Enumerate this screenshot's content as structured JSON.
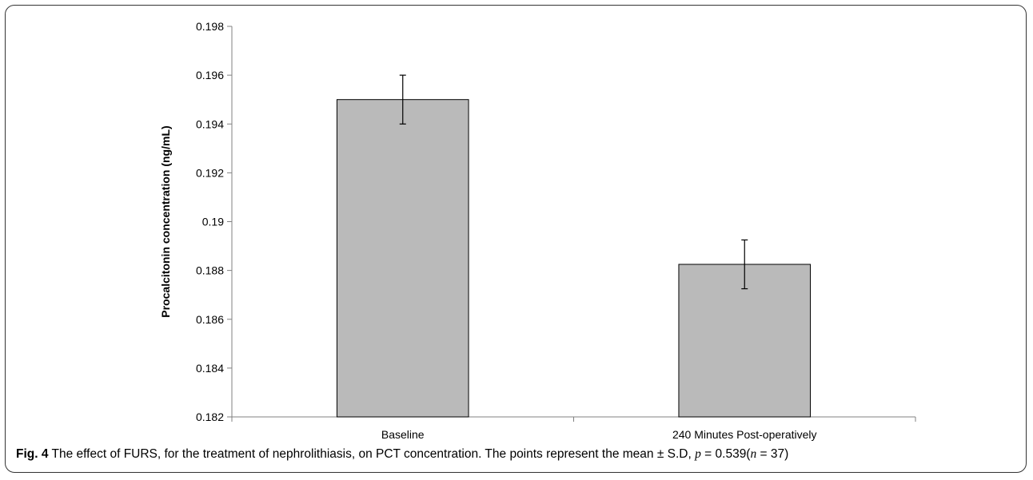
{
  "chart_data": {
    "type": "bar",
    "categories": [
      "Baseline",
      "240 Minutes Post-operatively"
    ],
    "values": [
      0.195,
      0.18825
    ],
    "error": [
      0.001,
      0.001
    ],
    "ylabel": "Procalcitonin concentration (ng/mL)",
    "xlabel": "",
    "ylim": [
      0.182,
      0.198
    ],
    "yticks": [
      "0.198",
      "0.196",
      "0.194",
      "0.192",
      "0.19",
      "0.188",
      "0.186",
      "0.184",
      "0.182"
    ],
    "grid": false,
    "bar_color": "#bababa",
    "bar_edge_color": "#000000"
  },
  "caption": {
    "label": "Fig. 4",
    "text_before_p": " The effect of FURS, for the treatment of nephrolithiasis, on PCT concentration. The points represent the mean ± S.D, ",
    "p_symbol": "p",
    "p_value_text": " = 0.539(",
    "n_symbol": "n",
    "n_value_text": " = 37)"
  }
}
